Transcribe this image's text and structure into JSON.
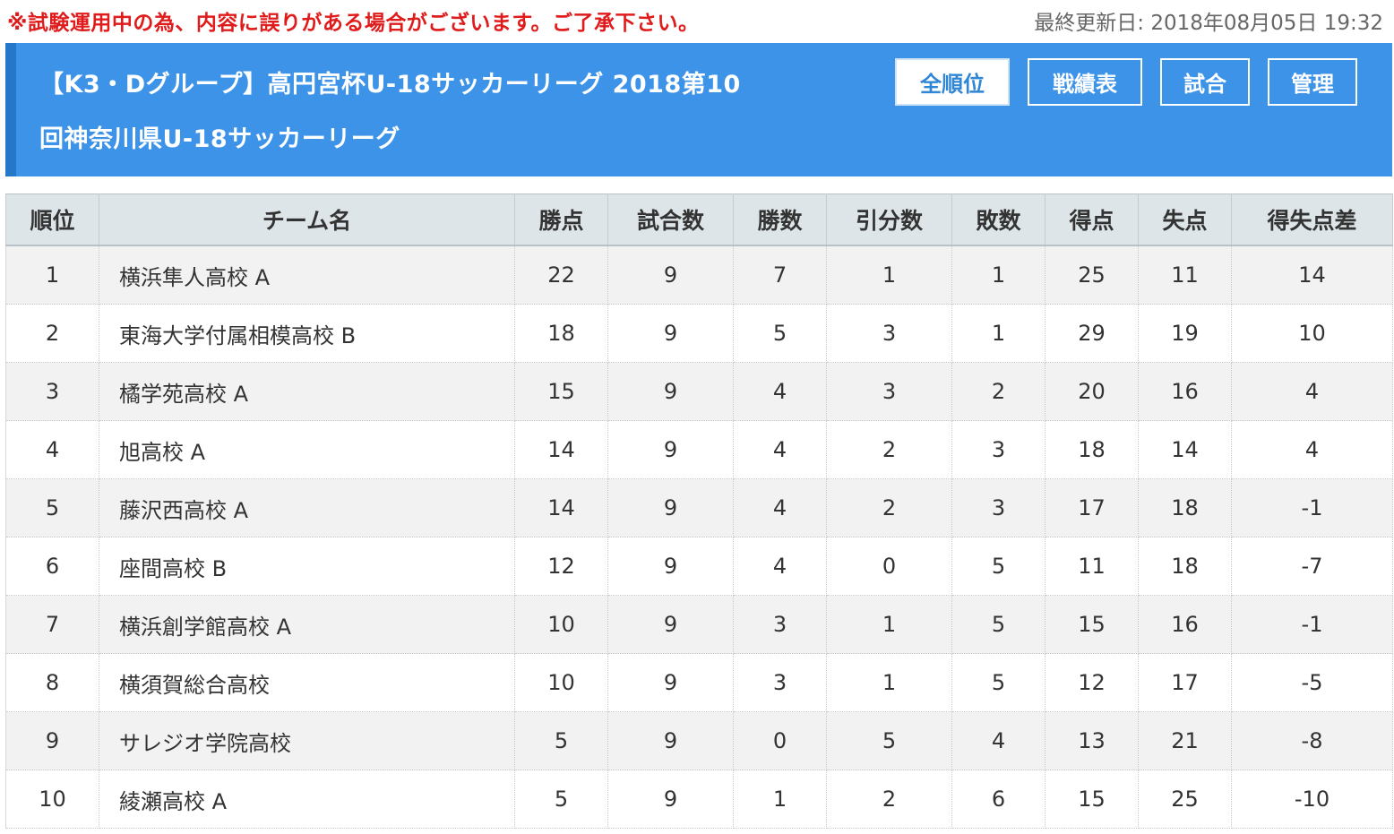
{
  "notice": "※試験運用中の為、内容に誤りがある場合がございます。ご了承下さい。",
  "updated": "最終更新日: 2018年08月05日 19:32",
  "title_line1": "【K3・Dグループ】高円宮杯U-18サッカーリーグ 2018第10",
  "title_line2": "回神奈川県U-18サッカーリーグ",
  "nav": {
    "all_rank": "全順位",
    "results": "戦績表",
    "matches": "試合",
    "admin": "管理"
  },
  "colors": {
    "banner": "#3d93e8",
    "banner_accent": "#2477c9",
    "notice": "#e01b1b",
    "header_bg": "#dde5e8"
  },
  "table": {
    "headers": [
      "順位",
      "チーム名",
      "勝点",
      "試合数",
      "勝数",
      "引分数",
      "敗数",
      "得点",
      "失点",
      "得失点差"
    ],
    "rows": [
      [
        "1",
        "横浜隼人高校 A",
        "22",
        "9",
        "7",
        "1",
        "1",
        "25",
        "11",
        "14"
      ],
      [
        "2",
        "東海大学付属相模高校 B",
        "18",
        "9",
        "5",
        "3",
        "1",
        "29",
        "19",
        "10"
      ],
      [
        "3",
        "橘学苑高校 A",
        "15",
        "9",
        "4",
        "3",
        "2",
        "20",
        "16",
        "4"
      ],
      [
        "4",
        "旭高校 A",
        "14",
        "9",
        "4",
        "2",
        "3",
        "18",
        "14",
        "4"
      ],
      [
        "5",
        "藤沢西高校 A",
        "14",
        "9",
        "4",
        "2",
        "3",
        "17",
        "18",
        "-1"
      ],
      [
        "6",
        "座間高校 B",
        "12",
        "9",
        "4",
        "0",
        "5",
        "11",
        "18",
        "-7"
      ],
      [
        "7",
        "横浜創学館高校 A",
        "10",
        "9",
        "3",
        "1",
        "5",
        "15",
        "16",
        "-1"
      ],
      [
        "8",
        "横須賀総合高校",
        "10",
        "9",
        "3",
        "1",
        "5",
        "12",
        "17",
        "-5"
      ],
      [
        "9",
        "サレジオ学院高校",
        "5",
        "9",
        "0",
        "5",
        "4",
        "13",
        "21",
        "-8"
      ],
      [
        "10",
        "綾瀬高校 A",
        "5",
        "9",
        "1",
        "2",
        "6",
        "15",
        "25",
        "-10"
      ]
    ]
  }
}
